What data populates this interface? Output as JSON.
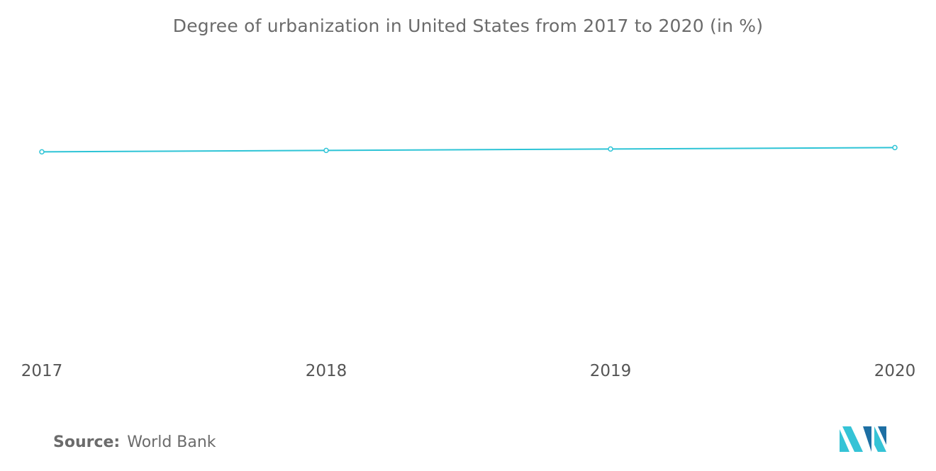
{
  "chart_data": {
    "type": "line",
    "title": "Degree of urbanization in United States from 2017 to 2020 (in %)",
    "categories": [
      "2017",
      "2018",
      "2019",
      "2020"
    ],
    "series": [
      {
        "values": [
          82.06,
          82.26,
          82.46,
          82.66
        ]
      }
    ],
    "ylim": [
      55,
      95
    ],
    "grid": false,
    "y_axis_visible": false,
    "line_color": "#2ec4d6"
  },
  "source": {
    "label": "Source:",
    "value": "World Bank"
  },
  "logo": {
    "icon": "mordor-intelligence-logo-icon",
    "color_dark": "#1d6fa3",
    "color_light": "#35c3d6"
  }
}
